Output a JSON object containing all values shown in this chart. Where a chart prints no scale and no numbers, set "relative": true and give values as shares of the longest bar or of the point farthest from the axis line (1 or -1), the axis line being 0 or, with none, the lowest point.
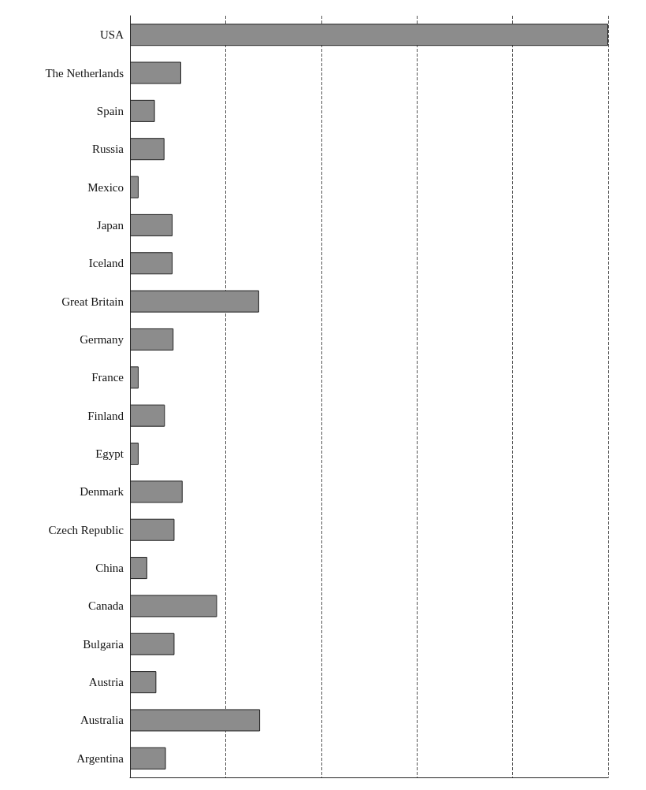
{
  "chart_data": {
    "type": "bar",
    "orientation": "horizontal",
    "relative": true,
    "grid": "x",
    "color": "#8c8c8c",
    "categories": [
      "USA",
      "The Netherlands",
      "Spain",
      "Russia",
      "Mexico",
      "Japan",
      "Iceland",
      "Great Britain",
      "Germany",
      "France",
      "Finland",
      "Egypt",
      "Denmark",
      "Czech Republic",
      "China",
      "Canada",
      "Bulgaria",
      "Austria",
      "Australia",
      "Argentina"
    ],
    "values": [
      1,
      0.107,
      0.052,
      0.072,
      0.018,
      0.089,
      0.089,
      0.27,
      0.091,
      0.018,
      0.073,
      0.018,
      0.11,
      0.093,
      0.036,
      0.182,
      0.093,
      0.055,
      0.272,
      0.075
    ]
  }
}
